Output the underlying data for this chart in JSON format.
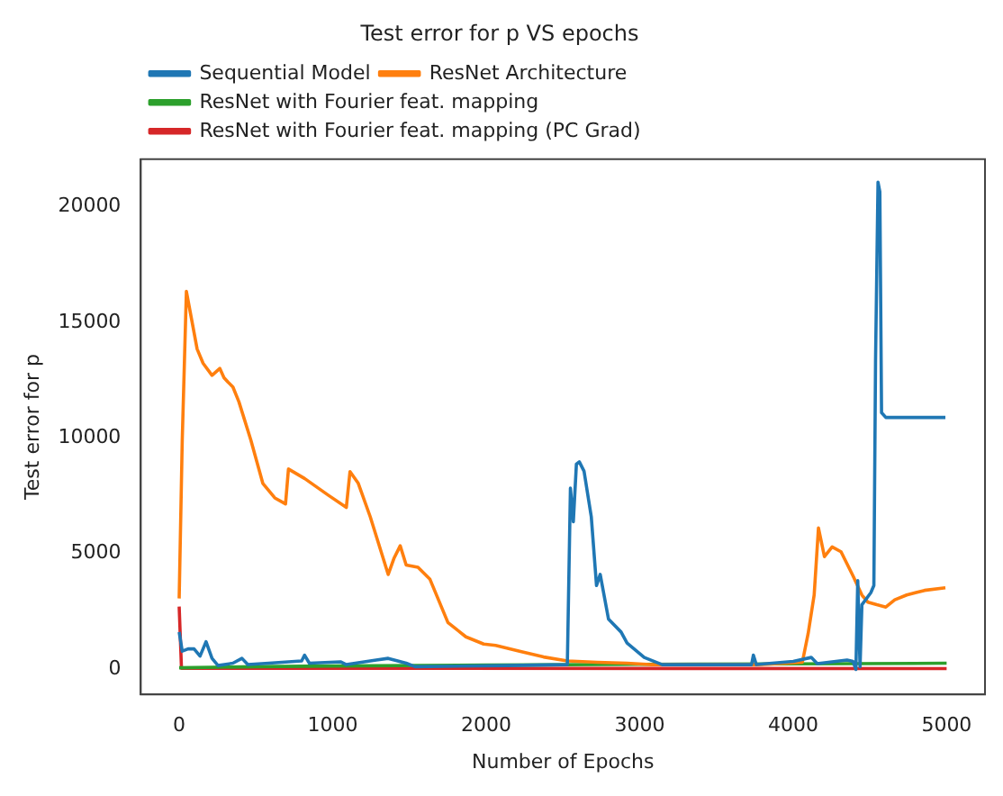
{
  "chart_data": {
    "type": "line",
    "title": "Test error for p VS epochs",
    "xlabel": "Number of Epochs",
    "ylabel": "Test error for p",
    "xlim": [
      -250,
      5250
    ],
    "ylim": [
      -1100,
      22050
    ],
    "xticks": [
      0,
      1000,
      2000,
      3000,
      4000,
      5000
    ],
    "yticks": [
      0,
      5000,
      10000,
      15000,
      20000
    ],
    "grid": false,
    "legend": "top left",
    "marker": "none",
    "line_style": "solid",
    "series": [
      {
        "name": "Sequential Model",
        "color": "#1f77b4",
        "x": [
          0,
          20,
          58,
          97,
          136,
          175,
          214,
          253,
          350,
          409,
          447,
          584,
          798,
          817,
          848,
          1051,
          1089,
          1284,
          1362,
          1479,
          1537,
          2140,
          2529,
          2549,
          2568,
          2588,
          2607,
          2638,
          2685,
          2719,
          2743,
          2797,
          2879,
          2918,
          3030,
          3147,
          3729,
          3741,
          3760,
          4001,
          4118,
          4157,
          4351,
          4390,
          4409,
          4421,
          4436,
          4448,
          4506,
          4526,
          4537,
          4553,
          4565,
          4576,
          4604,
          4992
        ],
        "values": [
          1600,
          770,
          870,
          870,
          560,
          1180,
          460,
          150,
          250,
          460,
          190,
          250,
          350,
          600,
          250,
          310,
          190,
          390,
          460,
          250,
          100,
          150,
          190,
          7820,
          6370,
          8860,
          8960,
          8550,
          6580,
          3610,
          4090,
          2160,
          1600,
          1120,
          500,
          190,
          190,
          600,
          190,
          330,
          500,
          230,
          390,
          330,
          -20,
          3820,
          100,
          2780,
          3300,
          3610,
          13370,
          21060,
          20640,
          11090,
          10880,
          10880
        ]
      },
      {
        "name": "ResNet Architecture",
        "color": "#ff7f0e",
        "x": [
          0,
          20,
          47,
          117,
          156,
          214,
          265,
          292,
          319,
          350,
          389,
          467,
          545,
          623,
          693,
          712,
          817,
          973,
          1089,
          1113,
          1167,
          1245,
          1362,
          1401,
          1440,
          1479,
          1556,
          1634,
          1751,
          1868,
          1984,
          2062,
          2218,
          2374,
          2529,
          2724,
          2918,
          3069,
          3768,
          4060,
          4098,
          4137,
          4165,
          4204,
          4254,
          4312,
          4390,
          4448,
          4487,
          4545,
          4604,
          4662,
          4740,
          4856,
          4992
        ],
        "values": [
          3050,
          9900,
          16330,
          13840,
          13220,
          12700,
          13000,
          12600,
          12400,
          12200,
          11560,
          9900,
          8030,
          7400,
          7140,
          8650,
          8240,
          7510,
          6990,
          8540,
          8030,
          6580,
          4090,
          4810,
          5330,
          4500,
          4400,
          3880,
          2010,
          1390,
          1080,
          1020,
          770,
          520,
          350,
          290,
          250,
          190,
          190,
          290,
          1540,
          3200,
          6100,
          4860,
          5280,
          5070,
          4030,
          3200,
          2890,
          2780,
          2680,
          2990,
          3200,
          3400,
          3510
        ]
      },
      {
        "name": "ResNet with Fourier feat. mapping",
        "color": "#2ca02c",
        "x": [
          0,
          500,
          1000,
          2000,
          3000,
          4000,
          5000
        ],
        "values": [
          50,
          100,
          130,
          170,
          200,
          220,
          250
        ]
      },
      {
        "name": "ResNet with Fourier feat. mapping (PC Grad)",
        "color": "#d62728",
        "x": [
          0,
          15,
          5000
        ],
        "values": [
          2700,
          30,
          20
        ]
      }
    ]
  }
}
